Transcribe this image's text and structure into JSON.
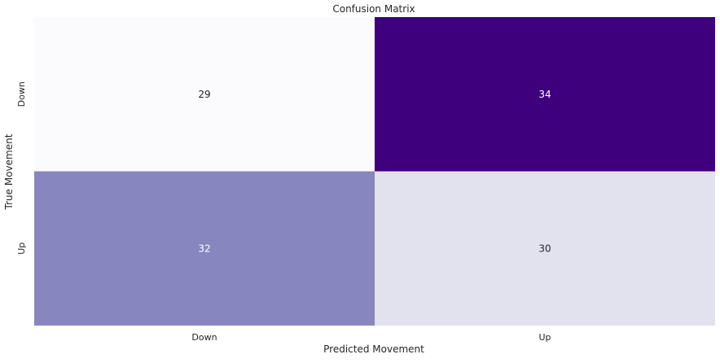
{
  "chart_data": {
    "type": "heatmap",
    "title": "Confusion Matrix",
    "xlabel": "Predicted Movement",
    "ylabel": "True Movement",
    "x_categories": [
      "Down",
      "Up"
    ],
    "y_categories": [
      "Down",
      "Up"
    ],
    "values": [
      [
        29,
        34
      ],
      [
        32,
        30
      ]
    ],
    "colormap": "Purples",
    "colorbar": false,
    "cell_colors": [
      [
        "#fbfbfd",
        "#3f007d"
      ],
      [
        "#8886be",
        "#e2e2ef"
      ]
    ],
    "annotation_colors": [
      [
        "#262626",
        "#ffffff"
      ],
      [
        "#ffffff",
        "#262626"
      ]
    ]
  }
}
